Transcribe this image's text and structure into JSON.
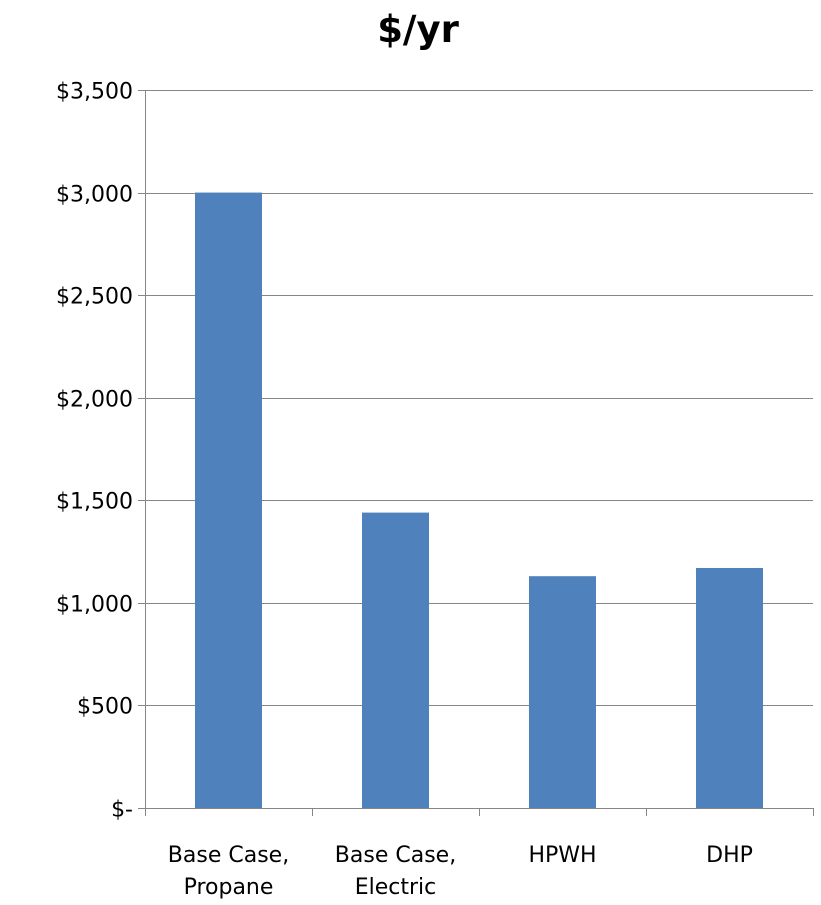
{
  "chart_data": {
    "type": "bar",
    "title": "$/yr",
    "xlabel": "",
    "ylabel": "",
    "categories": [
      [
        "Base Case,",
        "Propane"
      ],
      [
        "Base Case,",
        "Electric"
      ],
      [
        "HPWH"
      ],
      [
        "DHP"
      ]
    ],
    "values": [
      3000,
      1440,
      1130,
      1170
    ],
    "ylim": [
      0,
      3500
    ],
    "yticks": [
      0,
      500,
      1000,
      1500,
      2000,
      2500,
      3000,
      3500
    ],
    "ytick_labels": [
      "$-",
      "$500",
      "$1,000",
      "$1,500",
      "$2,000",
      "$2,500",
      "$3,000",
      "$3,500"
    ],
    "grid": true,
    "legend": "none",
    "colors": {
      "bar": "#4f81bd",
      "grid": "#868686",
      "axis": "#868686",
      "text": "#000000"
    }
  }
}
